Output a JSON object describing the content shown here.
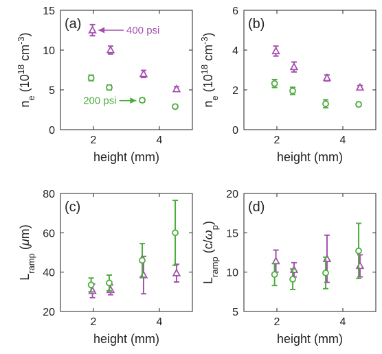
{
  "colors": {
    "purple": "#a550b0",
    "green": "#4cad3c",
    "axis": "#222222"
  },
  "chart_data": [
    {
      "type": "scatter",
      "panel_label": "(a)",
      "xlabel": "height (mm)",
      "ylabel_main": "n",
      "ylabel_sub": "e",
      "ylabel_unit_pre": " (10",
      "ylabel_exp1": "18",
      "ylabel_mid": " cm",
      "ylabel_exp2": "-3",
      "ylabel_post": ")",
      "xlim": [
        1,
        5
      ],
      "ylim": [
        0,
        15
      ],
      "xticks": [
        2,
        4
      ],
      "yticks": [
        0,
        5,
        10,
        15
      ],
      "series": [
        {
          "name": "400 psi",
          "marker": "triangle",
          "color_key": "purple",
          "x": [
            1.95,
            2.5,
            3.5,
            4.5
          ],
          "y": [
            12.5,
            10.0,
            7.0,
            5.1
          ],
          "err": [
            0.7,
            0.5,
            0.45,
            0.3
          ]
        },
        {
          "name": "200 psi",
          "marker": "circle",
          "color_key": "green",
          "x": [
            1.95,
            2.5,
            3.5,
            4.5
          ],
          "y": [
            6.5,
            5.3,
            3.7,
            2.9
          ],
          "err": [
            0.35,
            0.3,
            0.25,
            0.2
          ]
        }
      ],
      "annotations": [
        {
          "text": "400 psi",
          "color_key": "purple",
          "arrow_to": [
            2.15,
            12.5
          ],
          "text_at": [
            3.0,
            12.5
          ],
          "anchor": "start"
        },
        {
          "text": "200 psi",
          "color_key": "green",
          "arrow_to": [
            3.3,
            3.65
          ],
          "text_at": [
            2.7,
            3.65
          ],
          "anchor": "end"
        }
      ]
    },
    {
      "type": "scatter",
      "panel_label": "(b)",
      "xlabel": "height (mm)",
      "ylabel_main": "n",
      "ylabel_sub": "e",
      "ylabel_unit_pre": " (10",
      "ylabel_exp1": "18",
      "ylabel_mid": " cm",
      "ylabel_exp2": "-3",
      "ylabel_post": ")",
      "xlim": [
        1,
        5
      ],
      "ylim": [
        0,
        6
      ],
      "xticks": [
        2,
        4
      ],
      "yticks": [
        0,
        2,
        4,
        6
      ],
      "series": [
        {
          "marker": "triangle",
          "color_key": "purple",
          "x": [
            1.95,
            2.5,
            3.5,
            4.5
          ],
          "y": [
            3.95,
            3.15,
            2.6,
            2.12
          ],
          "err": [
            0.25,
            0.25,
            0.15,
            0.1
          ]
        },
        {
          "marker": "circle",
          "color_key": "green",
          "x": [
            1.95,
            2.5,
            3.5,
            4.5
          ],
          "y": [
            2.32,
            1.95,
            1.3,
            1.27
          ],
          "err": [
            0.2,
            0.18,
            0.2,
            0.1
          ]
        }
      ]
    },
    {
      "type": "scatter",
      "panel_label": "(c)",
      "xlabel": "height (mm)",
      "ylabel_main": "L",
      "ylabel_sub": "ramp",
      "ylabel_unit_pre": " (",
      "ylabel_greek": "μ",
      "ylabel_post": "m)",
      "xlim": [
        1,
        5
      ],
      "ylim": [
        20,
        80
      ],
      "xticks": [
        2,
        4
      ],
      "yticks": [
        20,
        40,
        60,
        80
      ],
      "series": [
        {
          "marker": "triangle",
          "color_key": "purple",
          "x": [
            1.95,
            2.5,
            3.5,
            4.5
          ],
          "y": [
            30.5,
            31.0,
            38.5,
            39.5
          ],
          "err": [
            3.5,
            2.5,
            9.5,
            4.5
          ]
        },
        {
          "marker": "circle",
          "color_key": "green",
          "x": [
            1.95,
            2.5,
            3.5,
            4.5
          ],
          "y": [
            33.5,
            34.5,
            46.0,
            60.0
          ],
          "err": [
            3.5,
            4.0,
            8.5,
            16.5
          ]
        }
      ]
    },
    {
      "type": "scatter",
      "panel_label": "(d)",
      "xlabel": "height (mm)",
      "ylabel_main": "L",
      "ylabel_sub": "ramp",
      "ylabel_unit_pre": " (c/",
      "ylabel_greek": "ω",
      "ylabel_sub2": "p",
      "ylabel_post": ")",
      "xlim": [
        1,
        5
      ],
      "ylim": [
        5,
        20
      ],
      "xticks": [
        2,
        4
      ],
      "yticks": [
        5,
        10,
        15,
        20
      ],
      "series": [
        {
          "marker": "triangle",
          "color_key": "purple",
          "x": [
            1.95,
            2.5,
            3.5,
            4.5
          ],
          "y": [
            11.4,
            10.3,
            11.7,
            10.8
          ],
          "err": [
            1.4,
            0.9,
            3.0,
            1.4
          ]
        },
        {
          "marker": "circle",
          "color_key": "green",
          "x": [
            1.95,
            2.5,
            3.5,
            4.5
          ],
          "y": [
            9.7,
            9.1,
            9.9,
            12.7
          ],
          "err": [
            1.4,
            1.3,
            2.0,
            3.5
          ]
        }
      ]
    }
  ]
}
